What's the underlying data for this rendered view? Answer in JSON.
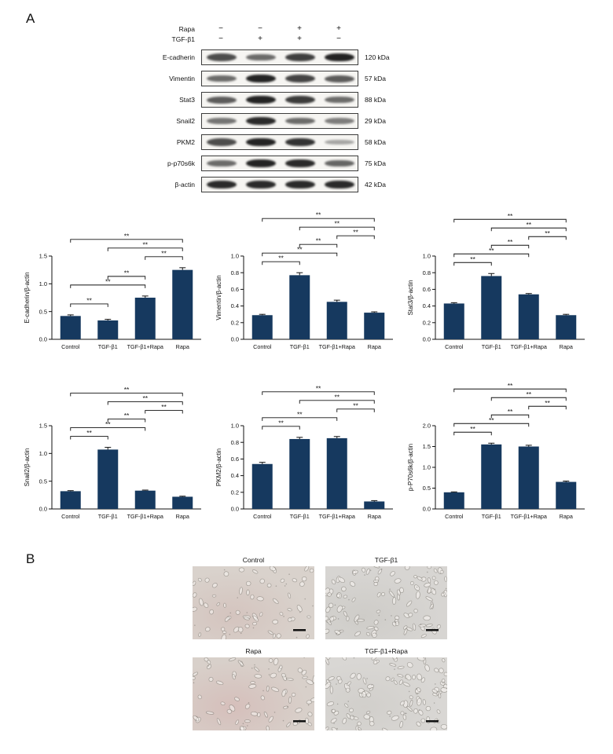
{
  "colors": {
    "bar": "#16395f",
    "axis": "#111111"
  },
  "panelA": {
    "label": "A",
    "blot": {
      "header": [
        {
          "name": "Rapa",
          "signs": [
            "−",
            "−",
            "+",
            "+"
          ]
        },
        {
          "name": "TGF-β1",
          "signs": [
            "−",
            "+",
            "+",
            "−"
          ]
        }
      ],
      "rows": [
        {
          "protein": "E-cadherin",
          "kda": "120 kDa",
          "bands": [
            0.7,
            0.5,
            0.78,
            0.95
          ]
        },
        {
          "protein": "Vimentin",
          "kda": "57 kDa",
          "bands": [
            0.5,
            0.95,
            0.75,
            0.6
          ]
        },
        {
          "protein": "Stat3",
          "kda": "88 kDa",
          "bands": [
            0.6,
            0.95,
            0.8,
            0.5
          ]
        },
        {
          "protein": "Snail2",
          "kda": "29 kDa",
          "bands": [
            0.45,
            0.9,
            0.5,
            0.4
          ]
        },
        {
          "protein": "PKM2",
          "kda": "58 kDa",
          "bands": [
            0.7,
            0.95,
            0.85,
            0.15
          ]
        },
        {
          "protein": "p-p70s6k",
          "kda": "75 kDa",
          "bands": [
            0.5,
            0.95,
            0.9,
            0.55
          ]
        },
        {
          "protein": "β-actin",
          "kda": "42 kDa",
          "bands": [
            0.9,
            0.9,
            0.9,
            0.9
          ]
        }
      ]
    }
  },
  "chart_data": [
    {
      "type": "bar",
      "ylabel": "E-cadherin/β-actin",
      "categories": [
        "Control",
        "TGF-β1",
        "TGF-β1+Rapa",
        "Rapa"
      ],
      "values": [
        0.42,
        0.34,
        0.75,
        1.25
      ],
      "errors": [
        0.02,
        0.02,
        0.03,
        0.04
      ],
      "ylim": [
        0,
        1.5
      ],
      "yticks": [
        0,
        0.5,
        1,
        1.5
      ],
      "sig_label": "**",
      "sig": [
        {
          "a": 0,
          "b": 1
        },
        {
          "a": 0,
          "b": 2
        },
        {
          "a": 1,
          "b": 2
        },
        {
          "a": 2,
          "b": 3
        },
        {
          "a": 1,
          "b": 3
        },
        {
          "a": 0,
          "b": 3
        }
      ]
    },
    {
      "type": "bar",
      "ylabel": "Vimentin/β-actin",
      "categories": [
        "Control",
        "TGF-β1",
        "TGF-β1+Rapa",
        "Rapa"
      ],
      "values": [
        0.29,
        0.77,
        0.45,
        0.32
      ],
      "errors": [
        0.01,
        0.03,
        0.02,
        0.01
      ],
      "ylim": [
        0,
        1.0
      ],
      "yticks": [
        0,
        0.2,
        0.4,
        0.6,
        0.8,
        1.0
      ],
      "sig_label": "**",
      "sig": [
        {
          "a": 0,
          "b": 1
        },
        {
          "a": 0,
          "b": 2
        },
        {
          "a": 1,
          "b": 2
        },
        {
          "a": 2,
          "b": 3
        },
        {
          "a": 1,
          "b": 3
        },
        {
          "a": 0,
          "b": 3
        }
      ]
    },
    {
      "type": "bar",
      "ylabel": "Stat3/β-actin",
      "categories": [
        "Control",
        "TGF-β1",
        "TGF-β1+Rapa",
        "Rapa"
      ],
      "values": [
        0.43,
        0.76,
        0.54,
        0.29
      ],
      "errors": [
        0.01,
        0.03,
        0.01,
        0.01
      ],
      "ylim": [
        0,
        1.0
      ],
      "yticks": [
        0,
        0.2,
        0.4,
        0.6,
        0.8,
        1.0
      ],
      "sig_label": "**",
      "sig": [
        {
          "a": 0,
          "b": 1
        },
        {
          "a": 0,
          "b": 2
        },
        {
          "a": 1,
          "b": 2
        },
        {
          "a": 2,
          "b": 3
        },
        {
          "a": 1,
          "b": 3
        },
        {
          "a": 0,
          "b": 3
        }
      ]
    },
    {
      "type": "bar",
      "ylabel": "Snail2/β-actin",
      "categories": [
        "Control",
        "TGF-β1",
        "TGF-β1+Rapa",
        "Rapa"
      ],
      "values": [
        0.32,
        1.07,
        0.33,
        0.22
      ],
      "errors": [
        0.01,
        0.04,
        0.01,
        0.01
      ],
      "ylim": [
        0,
        1.5
      ],
      "yticks": [
        0,
        0.5,
        1,
        1.5
      ],
      "sig_label": "**",
      "sig": [
        {
          "a": 0,
          "b": 1
        },
        {
          "a": 0,
          "b": 2
        },
        {
          "a": 1,
          "b": 2
        },
        {
          "a": 2,
          "b": 3
        },
        {
          "a": 1,
          "b": 3
        },
        {
          "a": 0,
          "b": 3
        }
      ]
    },
    {
      "type": "bar",
      "ylabel": "PKM2/β-actin",
      "categories": [
        "Control",
        "TGF-β1",
        "TGF-β1+Rapa",
        "Rapa"
      ],
      "values": [
        0.54,
        0.84,
        0.85,
        0.09
      ],
      "errors": [
        0.02,
        0.02,
        0.02,
        0.01
      ],
      "ylim": [
        0,
        1.0
      ],
      "yticks": [
        0,
        0.2,
        0.4,
        0.6,
        0.8,
        1.0
      ],
      "sig_label": "**",
      "sig": [
        {
          "a": 0,
          "b": 1
        },
        {
          "a": 0,
          "b": 2
        },
        {
          "a": 2,
          "b": 3
        },
        {
          "a": 1,
          "b": 3
        },
        {
          "a": 0,
          "b": 3
        }
      ]
    },
    {
      "type": "bar",
      "ylabel": "p-P70s6k/β-actin",
      "categories": [
        "Control",
        "TGF-β1",
        "TGF-β1+Rapa",
        "Rapa"
      ],
      "values": [
        0.4,
        1.55,
        1.5,
        0.65
      ],
      "errors": [
        0.01,
        0.03,
        0.03,
        0.02
      ],
      "ylim": [
        0,
        2.0
      ],
      "yticks": [
        0,
        0.5,
        1,
        1.5,
        2
      ],
      "sig_label": "**",
      "sig": [
        {
          "a": 0,
          "b": 1
        },
        {
          "a": 0,
          "b": 2
        },
        {
          "a": 1,
          "b": 2
        },
        {
          "a": 2,
          "b": 3
        },
        {
          "a": 1,
          "b": 3
        },
        {
          "a": 0,
          "b": 3
        }
      ]
    }
  ],
  "panelB": {
    "label": "B",
    "images": [
      {
        "label": "Control",
        "base": "#d9d2cc",
        "blotch": "rgba(205,175,170,0.40)",
        "density": 60
      },
      {
        "label": "TGF-β1",
        "base": "#d7d5d2",
        "blotch": "rgba(190,188,182,0.35)",
        "density": 100
      },
      {
        "label": "Rapa",
        "base": "#d8d0ca",
        "blotch": "rgba(210,170,168,0.45)",
        "density": 65
      },
      {
        "label": "TGF-β1+Rapa",
        "base": "#d9d7d4",
        "blotch": "rgba(195,192,186,0.35)",
        "density": 105
      }
    ]
  }
}
